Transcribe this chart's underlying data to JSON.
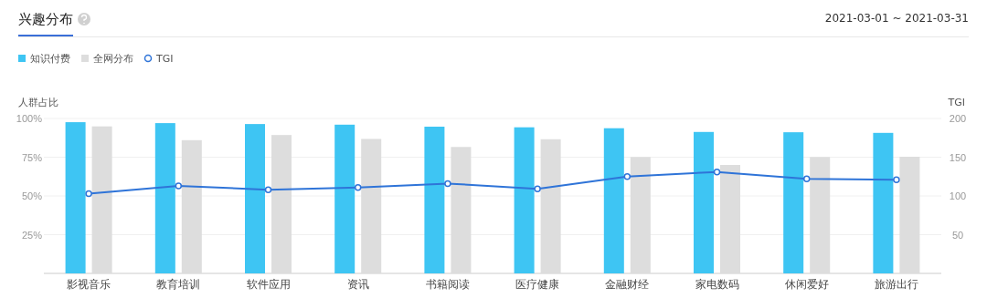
{
  "chart_data": {
    "type": "bar",
    "title": "兴趣分布",
    "subtitle": "2021-03-01 ~ 2021-03-31",
    "ylabel": "人群占比",
    "y2label": "TGI",
    "categories": [
      "影视音乐",
      "教育培训",
      "软件应用",
      "资讯",
      "书籍阅读",
      "医疗健康",
      "金融财经",
      "家电数码",
      "休闲爱好",
      "旅游出行"
    ],
    "series": [
      {
        "name": "知识付费",
        "color": "#3ec5f3",
        "values": [
          97.6,
          97.0,
          96.4,
          96.0,
          94.7,
          94.3,
          93.7,
          91.3,
          91.1,
          90.7
        ]
      },
      {
        "name": "全网分布",
        "color": "#dddddd",
        "values": [
          94.9,
          86.0,
          89.3,
          86.8,
          81.6,
          86.6,
          75.1,
          70.0,
          75.1,
          75.3
        ]
      },
      {
        "name": "TGI",
        "type": "line",
        "axis": "y2",
        "color": "#2f74d8",
        "values": [
          103,
          113,
          108,
          111,
          116,
          109,
          125,
          131,
          122,
          121
        ]
      }
    ],
    "ylim": [
      0,
      100
    ],
    "yticks": [
      {
        "value": 25,
        "label": "25%"
      },
      {
        "value": 50,
        "label": "50%"
      },
      {
        "value": 75,
        "label": "75%"
      },
      {
        "value": 100,
        "label": "100%"
      }
    ],
    "y2lim": [
      0,
      200
    ],
    "y2ticks": [
      50,
      100,
      150,
      200
    ],
    "grid": "y",
    "legend": "top left",
    "marker": "circle"
  }
}
